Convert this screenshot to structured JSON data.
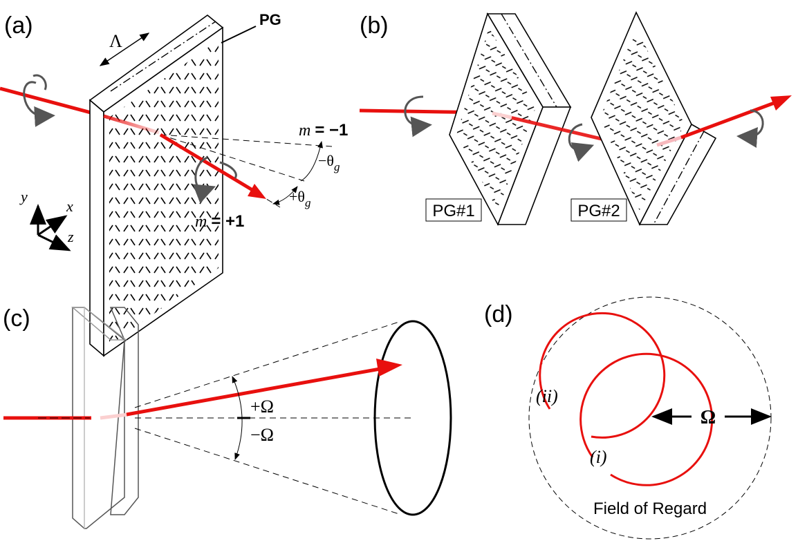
{
  "panel_a": {
    "label": "(a)",
    "grating": "PG",
    "period": "Λ",
    "order_minus": {
      "symbol": "m",
      "value": "= −1"
    },
    "order_plus": {
      "symbol": "m",
      "value": "= +1"
    },
    "angle_minus": {
      "symbol": "−θ",
      "subscript": "g"
    },
    "angle_plus": {
      "symbol": "+θ",
      "subscript": "g"
    },
    "axes": {
      "y": "y",
      "x": "x",
      "z": "z"
    }
  },
  "panel_b": {
    "label": "(b)",
    "grating_1": "PG#1",
    "grating_2": "PG#2"
  },
  "panel_c": {
    "label": "(c)",
    "angle_plus": "+Ω",
    "angle_minus": "−Ω"
  },
  "panel_d": {
    "label": "(d)",
    "circle_ii": "(ii)",
    "circle_i": "(i)",
    "radius": "Ω",
    "caption": "Field of Regard"
  }
}
